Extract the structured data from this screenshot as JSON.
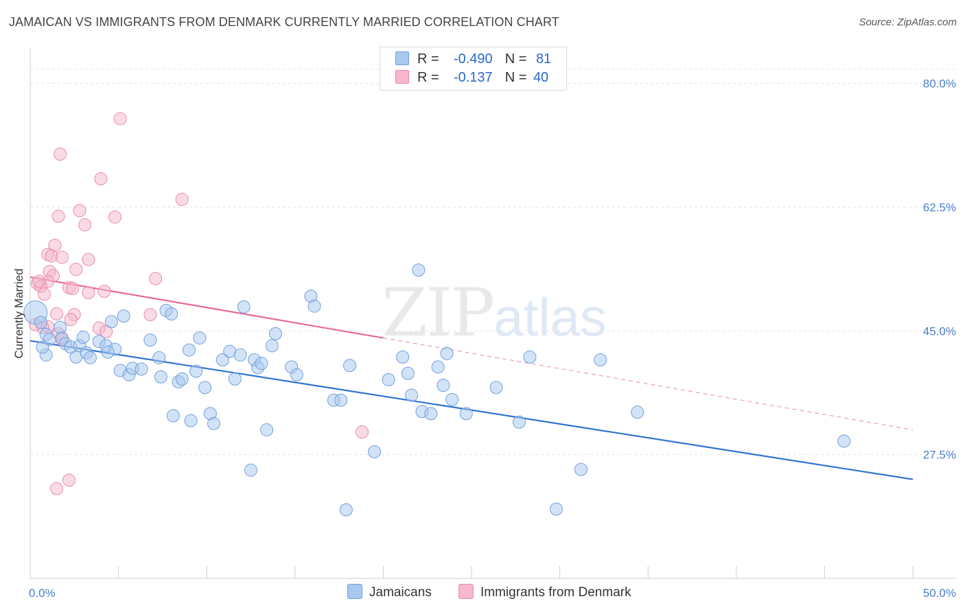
{
  "title": "JAMAICAN VS IMMIGRANTS FROM DENMARK CURRENTLY MARRIED CORRELATION CHART",
  "source": "Source: ZipAtlas.com",
  "watermark": {
    "zip": "ZIP",
    "atlas": "atlas"
  },
  "legend": {
    "rows": [
      {
        "r_label": "R =",
        "r_value": "-0.490",
        "n_label": "N =",
        "n_value": "81",
        "color": "#a8c8f0"
      },
      {
        "r_label": "R =",
        "r_value": "-0.137",
        "n_label": "N =",
        "n_value": "40",
        "color": "#f5b8cc"
      }
    ]
  },
  "bottom_legend": [
    {
      "label": "Jamaicans",
      "color": "#a8c8f0"
    },
    {
      "label": "Immigrants from Denmark",
      "color": "#f5b8cc"
    }
  ],
  "chart_data": {
    "type": "scatter",
    "title": "JAMAICAN VS IMMIGRANTS FROM DENMARK CURRENTLY MARRIED CORRELATION CHART",
    "xlabel": "",
    "ylabel": "Currently Married",
    "xlim": [
      0,
      50
    ],
    "ylim": [
      10,
      85
    ],
    "x_tick_labels": [
      "0.0%",
      "50.0%"
    ],
    "y_ticks": [
      27.5,
      45.0,
      62.5,
      80.0
    ],
    "y_tick_labels": [
      "27.5%",
      "45.0%",
      "62.5%",
      "80.0%"
    ],
    "grid": "horizontal-dashed",
    "series": [
      {
        "name": "Jamaicans",
        "color": "#a8c8f0",
        "stroke": "#6f9fdc",
        "trend": {
          "x": [
            0,
            50
          ],
          "y": [
            43.6,
            24.0
          ],
          "color": "#2f73d0",
          "dashed_extension": false
        },
        "points": [
          [
            0.3,
            47.6
          ],
          [
            0.6,
            46.2
          ],
          [
            0.9,
            44.5
          ],
          [
            1.1,
            43.8
          ],
          [
            0.9,
            41.6
          ],
          [
            1.7,
            45.5
          ],
          [
            1.8,
            44.0
          ],
          [
            2.0,
            43.2
          ],
          [
            2.3,
            42.7
          ],
          [
            2.6,
            41.3
          ],
          [
            2.8,
            42.9
          ],
          [
            3.2,
            41.9
          ],
          [
            3.4,
            41.2
          ],
          [
            3.9,
            43.5
          ],
          [
            4.3,
            42.9
          ],
          [
            4.6,
            46.3
          ],
          [
            4.8,
            42.4
          ],
          [
            4.4,
            42.0
          ],
          [
            5.1,
            39.4
          ],
          [
            5.3,
            47.1
          ],
          [
            5.6,
            38.8
          ],
          [
            5.8,
            39.7
          ],
          [
            6.3,
            39.6
          ],
          [
            6.8,
            43.7
          ],
          [
            7.3,
            41.2
          ],
          [
            7.7,
            47.9
          ],
          [
            7.4,
            38.5
          ],
          [
            8.0,
            47.4
          ],
          [
            8.1,
            33.0
          ],
          [
            8.4,
            37.8
          ],
          [
            8.6,
            38.2
          ],
          [
            9.0,
            42.3
          ],
          [
            9.1,
            32.3
          ],
          [
            9.4,
            39.3
          ],
          [
            9.6,
            44.0
          ],
          [
            9.9,
            37.0
          ],
          [
            10.2,
            33.3
          ],
          [
            10.4,
            31.9
          ],
          [
            10.9,
            40.9
          ],
          [
            11.3,
            42.1
          ],
          [
            11.6,
            38.2
          ],
          [
            11.9,
            41.6
          ],
          [
            12.1,
            48.4
          ],
          [
            12.5,
            25.3
          ],
          [
            12.7,
            40.9
          ],
          [
            12.9,
            39.8
          ],
          [
            13.1,
            40.4
          ],
          [
            13.4,
            31.0
          ],
          [
            13.7,
            42.9
          ],
          [
            13.9,
            44.6
          ],
          [
            14.8,
            39.9
          ],
          [
            15.1,
            38.8
          ],
          [
            15.9,
            49.9
          ],
          [
            16.1,
            48.5
          ],
          [
            17.2,
            35.2
          ],
          [
            17.6,
            35.2
          ],
          [
            17.9,
            19.7
          ],
          [
            18.1,
            40.1
          ],
          [
            19.5,
            27.9
          ],
          [
            20.3,
            38.1
          ],
          [
            21.1,
            41.3
          ],
          [
            21.4,
            39.0
          ],
          [
            21.6,
            35.9
          ],
          [
            22.0,
            53.6
          ],
          [
            22.2,
            33.6
          ],
          [
            22.7,
            33.3
          ],
          [
            23.1,
            39.9
          ],
          [
            23.4,
            37.3
          ],
          [
            23.6,
            41.8
          ],
          [
            23.9,
            35.3
          ],
          [
            24.7,
            33.3
          ],
          [
            26.4,
            37.0
          ],
          [
            27.7,
            32.1
          ],
          [
            28.3,
            41.3
          ],
          [
            29.8,
            19.8
          ],
          [
            31.2,
            25.4
          ],
          [
            32.3,
            40.9
          ],
          [
            34.4,
            33.5
          ],
          [
            46.1,
            29.4
          ],
          [
            0.7,
            42.7
          ],
          [
            3.0,
            44.1
          ]
        ]
      },
      {
        "name": "Immigrants from Denmark",
        "color": "#f5b8cc",
        "stroke": "#e88aa8",
        "trend": {
          "x": [
            0,
            20.0
          ],
          "y": [
            52.6,
            44.0
          ],
          "color": "#e76a96",
          "dashed_extension": true,
          "extension_x": [
            20.0,
            50
          ],
          "extension_y": [
            44.0,
            31.0
          ]
        },
        "points": [
          [
            5.1,
            75.0
          ],
          [
            1.7,
            70.0
          ],
          [
            4.0,
            66.5
          ],
          [
            8.6,
            63.6
          ],
          [
            2.8,
            62.0
          ],
          [
            1.6,
            61.2
          ],
          [
            4.8,
            61.1
          ],
          [
            3.1,
            60.0
          ],
          [
            1.4,
            57.1
          ],
          [
            1.0,
            55.8
          ],
          [
            1.2,
            55.6
          ],
          [
            1.8,
            55.4
          ],
          [
            3.3,
            55.1
          ],
          [
            2.6,
            53.7
          ],
          [
            1.1,
            53.4
          ],
          [
            1.3,
            52.8
          ],
          [
            1.0,
            52.0
          ],
          [
            0.4,
            51.7
          ],
          [
            0.6,
            51.3
          ],
          [
            2.2,
            51.1
          ],
          [
            2.4,
            51.0
          ],
          [
            0.8,
            50.2
          ],
          [
            3.3,
            50.4
          ],
          [
            4.2,
            50.6
          ],
          [
            7.1,
            52.4
          ],
          [
            1.5,
            47.4
          ],
          [
            2.5,
            47.3
          ],
          [
            6.8,
            47.3
          ],
          [
            2.3,
            46.6
          ],
          [
            1.0,
            45.6
          ],
          [
            0.7,
            45.5
          ],
          [
            3.9,
            45.4
          ],
          [
            1.6,
            44.6
          ],
          [
            0.3,
            45.9
          ],
          [
            1.8,
            43.8
          ],
          [
            18.8,
            30.7
          ],
          [
            1.5,
            22.7
          ],
          [
            2.2,
            23.9
          ],
          [
            4.3,
            44.9
          ],
          [
            0.5,
            52.0
          ]
        ]
      }
    ]
  }
}
